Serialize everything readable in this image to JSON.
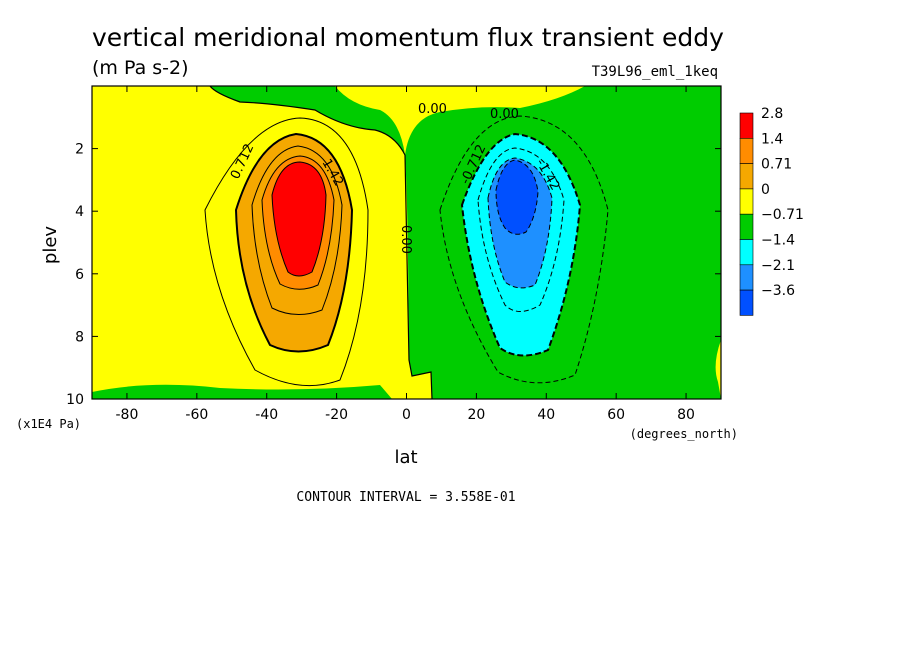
{
  "chart_data": {
    "type": "heatmap",
    "title": "vertical meridional momentum flux transient eddy",
    "units": "(m Pa s-2)",
    "dataset": "T39L96_eml_1keq",
    "xlabel": "lat",
    "xunits": "(degrees_north)",
    "ylabel": "plev",
    "yunits": "(x1E4 Pa)",
    "xlim": [
      -90,
      90
    ],
    "ylim": [
      10,
      0
    ],
    "x_ticks": [
      "-80",
      "-60",
      "-40",
      "-20",
      "0",
      "20",
      "40",
      "60",
      "80"
    ],
    "x_tick_values": [
      -80,
      -60,
      -40,
      -20,
      0,
      20,
      40,
      60,
      80
    ],
    "y_ticks": [
      "2",
      "4",
      "6",
      "8",
      "10"
    ],
    "y_tick_values": [
      2,
      4,
      6,
      8,
      10
    ],
    "legend": {
      "placement": "right",
      "labels": [
        "2.8",
        "1.4",
        "0.71",
        "0",
        "−0.71",
        "−1.4",
        "−2.1",
        "−3.6"
      ],
      "colors": [
        "#ff0000",
        "#ff8c00",
        "#f5a800",
        "#ffff00",
        "#00cc00",
        "#00ffff",
        "#1e90ff",
        "#0050ff"
      ]
    },
    "contour_labels": [
      "0.712",
      "1.42",
      "0.00",
      "0.00",
      "0.00",
      "-0.712",
      "-1.42"
    ],
    "contour_interval_text": "CONTOUR INTERVAL = 3.558E-01",
    "features": [
      {
        "name": "positive maximum",
        "lat": -31,
        "plev": 3.8,
        "value": 2.8
      },
      {
        "name": "negative minimum",
        "lat": 31,
        "plev": 3.8,
        "value": -3.6
      }
    ],
    "zero_contour_lat": -1
  }
}
